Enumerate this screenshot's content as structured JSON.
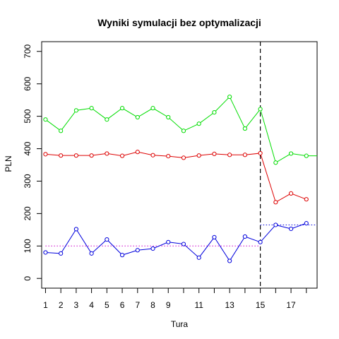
{
  "chart_data": {
    "type": "line",
    "title": "Wyniki symulacji bez optymalizacji",
    "xlabel": "Tura",
    "ylabel": "PLN",
    "x": [
      1,
      2,
      3,
      4,
      5,
      6,
      7,
      8,
      9,
      10,
      11,
      12,
      13,
      14,
      15,
      16,
      17,
      18
    ],
    "x_ticks": [
      1,
      2,
      3,
      4,
      5,
      6,
      7,
      8,
      9,
      11,
      13,
      15,
      17
    ],
    "y_ticks": [
      0,
      100,
      200,
      300,
      400,
      500,
      600,
      700
    ],
    "xlim": [
      0.75,
      18.7
    ],
    "ylim": [
      -30,
      730
    ],
    "grid": false,
    "series": [
      {
        "color": "#00dd00",
        "values": [
          490,
          455,
          518,
          525,
          490,
          525,
          497,
          525,
          497,
          455,
          477,
          512,
          560,
          462,
          522,
          357,
          385,
          378,
          378
        ],
        "x_values": [
          1,
          2,
          3,
          4,
          5,
          6,
          7,
          8,
          9,
          10,
          11,
          12,
          13,
          14,
          15,
          16,
          17,
          18,
          18.7
        ],
        "marker_count": 18
      },
      {
        "color": "#dd0000",
        "values": [
          383,
          379,
          379,
          379,
          385,
          378,
          390,
          380,
          377,
          372,
          379,
          384,
          381,
          381,
          386,
          235,
          262,
          244
        ],
        "x_values": [
          1,
          2,
          3,
          4,
          5,
          6,
          7,
          8,
          9,
          10,
          11,
          12,
          13,
          14,
          15,
          16,
          17,
          18
        ],
        "marker_count": 18
      },
      {
        "color": "#0000dd",
        "values": [
          80,
          77,
          152,
          77,
          120,
          72,
          87,
          92,
          112,
          106,
          64,
          127,
          54,
          129,
          112,
          165,
          153,
          170
        ],
        "x_values": [
          1,
          2,
          3,
          4,
          5,
          6,
          7,
          8,
          9,
          10,
          11,
          12,
          13,
          14,
          15,
          16,
          17,
          18
        ],
        "marker_count": 18
      }
    ],
    "reference_lines": [
      {
        "color": "#cc00cc",
        "style": "dotted",
        "y": 100,
        "x_from": 1,
        "x_to": 15
      },
      {
        "color": "#0000dd",
        "style": "dotted",
        "y": 165,
        "x_from": 15,
        "x_to": 18.7
      }
    ],
    "vline": {
      "x": 15,
      "color": "#000000",
      "style": "dashed"
    }
  }
}
